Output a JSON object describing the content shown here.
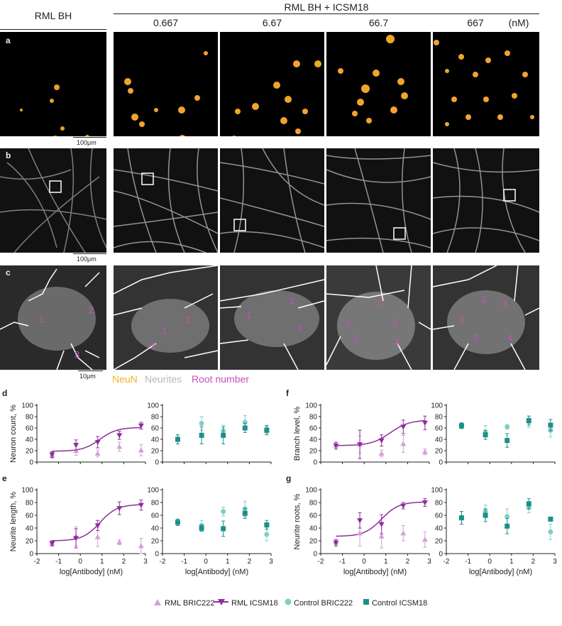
{
  "header": {
    "left_title": "RML BH",
    "right_title": "RML BH + ICSM18",
    "concentrations": [
      "0.667",
      "6.67",
      "66.7",
      "667"
    ],
    "unit": "(nM)"
  },
  "panel_letters": [
    "a",
    "b",
    "c",
    "d",
    "e",
    "f",
    "g"
  ],
  "scale_bars": {
    "a": "100μm",
    "b": "100μm",
    "c": "10μm"
  },
  "stain_legend": [
    {
      "label": "NeuN",
      "color": "#f2b233"
    },
    {
      "label": "Neurites",
      "color": "#b8b8b8"
    },
    {
      "label": "Root number",
      "color": "#c850b6"
    }
  ],
  "root_numbers": [
    [
      "1",
      "2",
      "3"
    ],
    [
      "1",
      "2",
      "3"
    ],
    [
      "1",
      "2",
      "3"
    ],
    [
      "1",
      "2",
      "3",
      "4",
      "5"
    ],
    [
      "1",
      "2",
      "3",
      "4",
      "5"
    ]
  ],
  "colors": {
    "rml_bric222": "#d49fd6",
    "rml_icsm18": "#8e2c9b",
    "control_bric222": "#7fcfc8",
    "control_icsm18": "#1d8f8a"
  },
  "chart_data": [
    {
      "id": "d",
      "type": "scatter",
      "ylabel": "Neuron count, %",
      "xlabel": "",
      "xlim": [
        -2,
        3
      ],
      "ylim": [
        0,
        100
      ],
      "x_ticks": [
        "-2",
        "-1",
        "0",
        "1",
        "2",
        "3"
      ],
      "y_ticks": [
        "0",
        "20",
        "40",
        "60",
        "80",
        "100"
      ],
      "series": [
        {
          "name": "RML BRIC222",
          "x": [
            -1.3,
            -0.2,
            0.8,
            1.8,
            2.8
          ],
          "y": [
            12,
            20,
            15,
            27,
            21
          ],
          "err": [
            5,
            8,
            6,
            8,
            10
          ]
        },
        {
          "name": "RML ICSM18",
          "x": [
            -1.3,
            -0.2,
            0.8,
            1.8,
            2.8
          ],
          "y": [
            13,
            30,
            35,
            47,
            64
          ],
          "err": [
            5,
            9,
            10,
            7,
            6
          ]
        }
      ],
      "fit": {
        "series": "RML ICSM18",
        "bottom": 19,
        "top": 61,
        "ec50": 0.9,
        "slope": 1.1
      }
    },
    {
      "id": "d-control",
      "type": "scatter",
      "ylabel": "",
      "xlabel": "",
      "xlim": [
        -2,
        3
      ],
      "ylim": [
        0,
        100
      ],
      "x_ticks": [
        "-2",
        "-1",
        "0",
        "1",
        "2",
        "3"
      ],
      "y_ticks": [
        "0",
        "20",
        "40",
        "60",
        "80",
        "100"
      ],
      "series": [
        {
          "name": "Control BRIC222",
          "x": [
            -1.3,
            -0.2,
            0.8,
            1.8,
            2.8
          ],
          "y": [
            40,
            68,
            55,
            70,
            58
          ],
          "err": [
            8,
            12,
            10,
            12,
            7
          ]
        },
        {
          "name": "Control ICSM18",
          "x": [
            -1.3,
            -0.2,
            0.8,
            1.8,
            2.8
          ],
          "y": [
            40,
            47,
            47,
            60,
            56
          ],
          "err": [
            8,
            15,
            15,
            8,
            8
          ]
        }
      ]
    },
    {
      "id": "e",
      "type": "scatter",
      "ylabel": "Neurite length, %",
      "xlabel": "log[Antibody] (nM)",
      "xlim": [
        -2,
        3
      ],
      "ylim": [
        0,
        100
      ],
      "x_ticks": [
        "-2",
        "-1",
        "0",
        "1",
        "2",
        "3"
      ],
      "y_ticks": [
        "0",
        "20",
        "40",
        "60",
        "80",
        "100"
      ],
      "series": [
        {
          "name": "RML BRIC222",
          "x": [
            -1.3,
            -0.2,
            0.8,
            1.8,
            2.8
          ],
          "y": [
            16,
            27,
            26,
            18,
            12
          ],
          "err": [
            4,
            15,
            15,
            4,
            12
          ]
        },
        {
          "name": "RML ICSM18",
          "x": [
            -1.3,
            -0.2,
            0.8,
            1.8,
            2.8
          ],
          "y": [
            16,
            24,
            44,
            71,
            76
          ],
          "err": [
            4,
            15,
            8,
            10,
            8
          ]
        }
      ],
      "fit": {
        "series": "RML ICSM18",
        "bottom": 20,
        "top": 77,
        "ec50": 0.9,
        "slope": 1.1
      }
    },
    {
      "id": "e-control",
      "type": "scatter",
      "ylabel": "",
      "xlabel": "log[Antibody] (nM)",
      "xlim": [
        -2,
        3
      ],
      "ylim": [
        0,
        100
      ],
      "x_ticks": [
        "-2",
        "-1",
        "0",
        "1",
        "2",
        "3"
      ],
      "y_ticks": [
        "0",
        "20",
        "40",
        "60",
        "80",
        "100"
      ],
      "series": [
        {
          "name": "Control BRIC222",
          "x": [
            -1.3,
            -0.2,
            0.8,
            1.8,
            2.8
          ],
          "y": [
            49,
            44,
            66,
            70,
            30
          ],
          "err": [
            5,
            8,
            7,
            12,
            10
          ]
        },
        {
          "name": "Control ICSM18",
          "x": [
            -1.3,
            -0.2,
            0.8,
            1.8,
            2.8
          ],
          "y": [
            49,
            40,
            39,
            63,
            45
          ],
          "err": [
            5,
            5,
            12,
            8,
            7
          ]
        }
      ]
    },
    {
      "id": "f",
      "type": "scatter",
      "ylabel": "Branch level, %",
      "xlabel": "",
      "xlim": [
        -2,
        3
      ],
      "ylim": [
        0,
        100
      ],
      "x_ticks": [
        "-2",
        "-1",
        "0",
        "1",
        "2",
        "3"
      ],
      "y_ticks": [
        "0",
        "20",
        "40",
        "60",
        "80",
        "100"
      ],
      "series": [
        {
          "name": "RML BRIC222",
          "x": [
            -1.3,
            -0.2,
            0.8,
            1.8,
            2.8
          ],
          "y": [
            29,
            31,
            15,
            32,
            18
          ],
          "err": [
            6,
            15,
            6,
            15,
            5
          ]
        },
        {
          "name": "RML ICSM18",
          "x": [
            -1.3,
            -0.2,
            0.8,
            1.8,
            2.8
          ],
          "y": [
            29,
            31,
            38,
            62,
            69
          ],
          "err": [
            6,
            25,
            10,
            12,
            12
          ]
        }
      ],
      "fit": {
        "series": "RML ICSM18",
        "bottom": 29,
        "top": 74,
        "ec50": 1.2,
        "slope": 1.0
      }
    },
    {
      "id": "f-control",
      "type": "scatter",
      "ylabel": "",
      "xlabel": "",
      "xlim": [
        -2,
        3
      ],
      "ylim": [
        0,
        100
      ],
      "x_ticks": [
        "-2",
        "-1",
        "0",
        "1",
        "2",
        "3"
      ],
      "y_ticks": [
        "0",
        "20",
        "40",
        "60",
        "80",
        "100"
      ],
      "series": [
        {
          "name": "Control BRIC222",
          "x": [
            -1.3,
            -0.2,
            0.8,
            1.8,
            2.8
          ],
          "y": [
            64,
            52,
            62,
            71,
            56
          ],
          "err": [
            5,
            12,
            4,
            10,
            12
          ]
        },
        {
          "name": "Control ICSM18",
          "x": [
            -1.3,
            -0.2,
            0.8,
            1.8,
            2.8
          ],
          "y": [
            64,
            48,
            38,
            73,
            65
          ],
          "err": [
            5,
            8,
            12,
            8,
            10
          ]
        }
      ]
    },
    {
      "id": "g",
      "type": "scatter",
      "ylabel": "Neurite roots, %",
      "xlabel": "log[Antibody] (nM)",
      "xlim": [
        -2,
        3
      ],
      "ylim": [
        0,
        100
      ],
      "x_ticks": [
        "-2",
        "-1",
        "0",
        "1",
        "2",
        "3"
      ],
      "y_ticks": [
        "0",
        "20",
        "40",
        "60",
        "80",
        "100"
      ],
      "series": [
        {
          "name": "RML BRIC222",
          "x": [
            -1.3,
            -0.2,
            0.8,
            1.8,
            2.8
          ],
          "y": [
            18,
            32,
            27,
            32,
            22
          ],
          "err": [
            4,
            20,
            18,
            12,
            12
          ]
        },
        {
          "name": "RML ICSM18",
          "x": [
            -1.3,
            -0.2,
            0.8,
            1.8,
            2.8
          ],
          "y": [
            17,
            52,
            46,
            75,
            80
          ],
          "err": [
            5,
            12,
            15,
            5,
            6
          ]
        }
      ],
      "fit": {
        "series": "RML ICSM18",
        "bottom": 27,
        "top": 81,
        "ec50": 0.8,
        "slope": 1.1
      }
    },
    {
      "id": "g-control",
      "type": "scatter",
      "ylabel": "",
      "xlabel": "log[Antibody] (nM)",
      "xlim": [
        -2,
        3
      ],
      "ylim": [
        0,
        100
      ],
      "x_ticks": [
        "-2",
        "-1",
        "0",
        "1",
        "2",
        "3"
      ],
      "y_ticks": [
        "0",
        "20",
        "40",
        "60",
        "80",
        "100"
      ],
      "series": [
        {
          "name": "Control BRIC222",
          "x": [
            -1.3,
            -0.2,
            0.8,
            1.8,
            2.8
          ],
          "y": [
            56,
            66,
            58,
            72,
            34
          ],
          "err": [
            10,
            10,
            12,
            8,
            12
          ]
        },
        {
          "name": "Control ICSM18",
          "x": [
            -1.3,
            -0.2,
            0.8,
            1.8,
            2.8
          ],
          "y": [
            56,
            60,
            43,
            78,
            54
          ],
          "err": [
            10,
            10,
            12,
            8,
            3
          ]
        }
      ]
    }
  ],
  "legend": [
    {
      "label": "RML BRIC222",
      "marker": "triangle-up",
      "color": "#d49fd6"
    },
    {
      "label": "RML ICSM18",
      "marker": "triangle-down",
      "color": "#8e2c9b"
    },
    {
      "label": "Control BRIC222",
      "marker": "circle",
      "color": "#7fcfc8"
    },
    {
      "label": "Control ICSM18",
      "marker": "square",
      "color": "#1d8f8a"
    }
  ]
}
